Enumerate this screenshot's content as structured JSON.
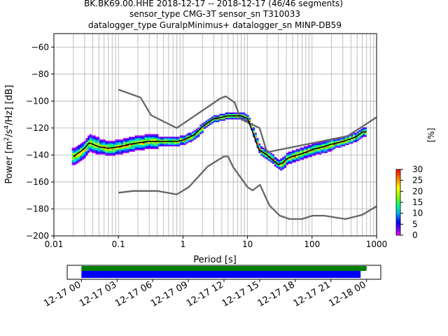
{
  "title_lines": [
    "BK.BK69.00.HHE   2018-12-17 -- 2018-12-17  (46/46 segments)",
    "sensor_type CMG-3T sensor_sn T310033",
    "datalogger_type GuralpMinimus+ datalogger_sn MINP-DB59"
  ],
  "colors": {
    "noise_model": "#666666",
    "mean_curve": "#000000",
    "grid": "#b0b0b0",
    "coverage_data": "#008000",
    "coverage_gaps": "#0000ff"
  },
  "chart_data": [
    {
      "type": "heatmap",
      "xlabel": "Period [s]",
      "ylabel": "Power [m²/s⁴/Hz] [dB]",
      "x_scale": "log",
      "xlim": [
        0.01,
        1000
      ],
      "ylim": [
        -200,
        -50
      ],
      "x_tick_labels": [
        "0.01",
        "0.1",
        "1",
        "10",
        "100",
        "1000"
      ],
      "y_ticks": [
        -60,
        -80,
        -100,
        -120,
        -140,
        -160,
        -180,
        -200
      ],
      "y_tick_labels": [
        "−60",
        "−80",
        "−100",
        "−120",
        "−140",
        "−160",
        "−180",
        "−200"
      ],
      "grid": true,
      "colorbar": {
        "label": "[%]",
        "range": [
          0,
          30
        ],
        "ticks": [
          "0",
          "5",
          "10",
          "15",
          "20",
          "25",
          "30"
        ]
      },
      "series": [
        {
          "role": "high_noise_model",
          "x": [
            0.1,
            0.22,
            0.32,
            0.8,
            3.8,
            4.6,
            6.3,
            7.9,
            15.4,
            20,
            354.8,
            1000
          ],
          "y": [
            -91.5,
            -97.4,
            -110.5,
            -120,
            -98,
            -96.5,
            -101,
            -113.5,
            -120,
            -138,
            -126,
            -112
          ]
        },
        {
          "role": "low_noise_model",
          "x": [
            0.1,
            0.17,
            0.4,
            0.8,
            1.24,
            2.4,
            4.3,
            5,
            6,
            10,
            12,
            15.6,
            21.9,
            31.6,
            45,
            70,
            101,
            154,
            328,
            600,
            1000
          ],
          "y": [
            -168,
            -166.7,
            -166.7,
            -169.2,
            -163.7,
            -148.6,
            -141.1,
            -141.1,
            -149,
            -163.8,
            -166.2,
            -162.1,
            -177.5,
            -185,
            -187.5,
            -187.5,
            -185,
            -185,
            -187.5,
            -184.4,
            -178
          ]
        },
        {
          "role": "mean_psd",
          "x": [
            0.02,
            0.025,
            0.03,
            0.035,
            0.04,
            0.05,
            0.07,
            0.1,
            0.15,
            0.2,
            0.3,
            0.5,
            0.8,
            1,
            1.5,
            2,
            3,
            4,
            5,
            6,
            7,
            8,
            10,
            12,
            15,
            20,
            25,
            30,
            35,
            40,
            50,
            70,
            100,
            150,
            200,
            300,
            400,
            500,
            600,
            700
          ],
          "y": [
            -141,
            -138,
            -135,
            -131,
            -132,
            -134,
            -135,
            -134,
            -132,
            -131,
            -130,
            -130,
            -130,
            -129,
            -125,
            -119,
            -113,
            -112,
            -111,
            -111,
            -111,
            -111,
            -113,
            -123,
            -136,
            -140,
            -144,
            -147,
            -146,
            -143,
            -141,
            -139,
            -136,
            -134,
            -132,
            -130,
            -128,
            -126,
            -123,
            -123
          ]
        }
      ]
    },
    {
      "type": "bar",
      "role": "data_coverage",
      "xlabel": "",
      "x_tick_labels": [
        "12-17 00",
        "12-17 03",
        "12-17 06",
        "12-17 09",
        "12-17 12",
        "12-17 15",
        "12-17 18",
        "12-17 21",
        "12-18 00"
      ],
      "x_range_hours": [
        -1.2,
        25.2
      ],
      "bars": [
        {
          "name": "data",
          "start_hours": 0,
          "end_hours": 24.0
        },
        {
          "name": "gaps",
          "start_hours": 0,
          "end_hours": 23.5
        }
      ]
    }
  ]
}
